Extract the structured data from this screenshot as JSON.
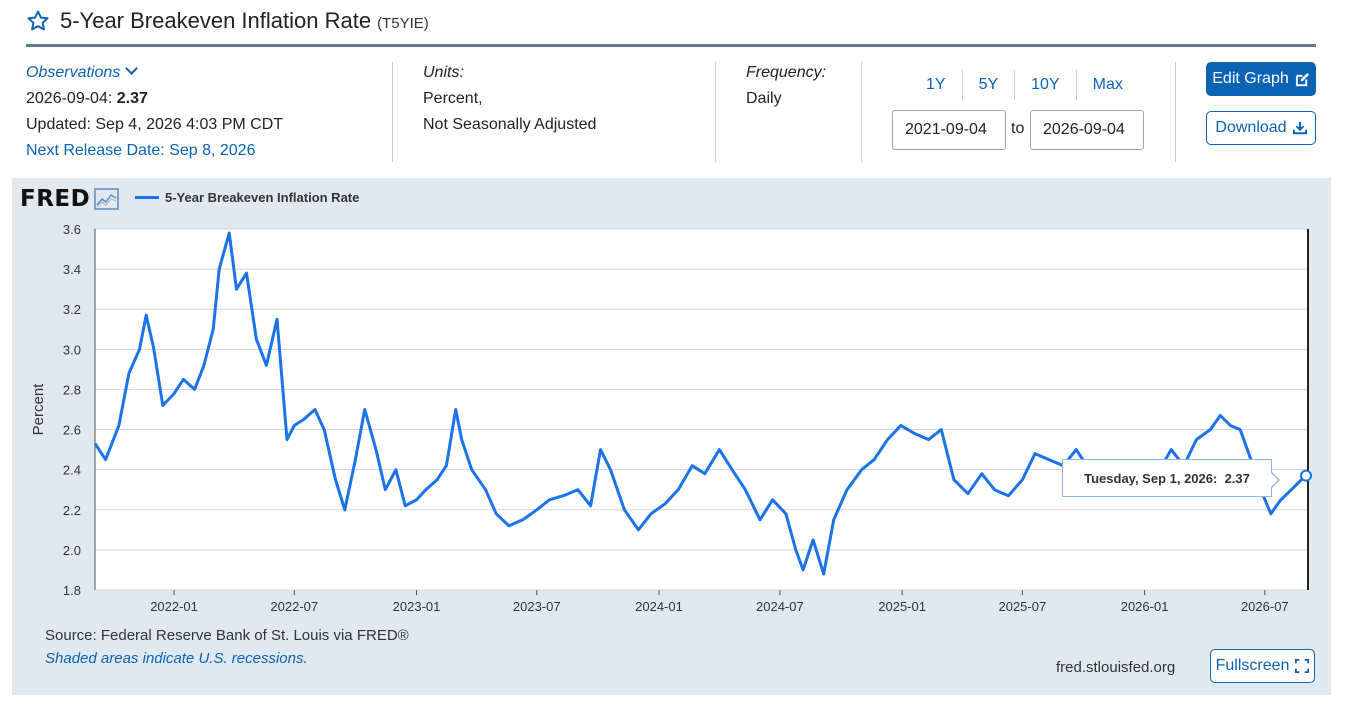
{
  "header": {
    "title": "5-Year Breakeven Inflation Rate",
    "series_code": "(T5YIE)"
  },
  "observations": {
    "label": "Observations",
    "date": "2026-09-04:",
    "value": "2.37",
    "updated": "Updated: Sep 4, 2026 4:03 PM CDT",
    "next_release": "Next Release Date: Sep 8, 2026"
  },
  "units": {
    "label": "Units:",
    "line1": "Percent,",
    "line2": "Not Seasonally Adjusted"
  },
  "frequency": {
    "label": "Frequency:",
    "value": "Daily"
  },
  "range_buttons": [
    "1Y",
    "5Y",
    "10Y",
    "Max"
  ],
  "date_range": {
    "start": "2021-09-04",
    "to": "to",
    "end": "2026-09-04"
  },
  "buttons": {
    "edit_graph": "Edit Graph",
    "download": "Download",
    "fullscreen": "Fullscreen"
  },
  "graph": {
    "logo": "FRED",
    "legend": "5-Year Breakeven Inflation Rate",
    "source": "Source: Federal Reserve Bank of St. Louis via FRED®",
    "recessions": "Shaded areas indicate U.S. recessions.",
    "site": "fred.stlouisfed.org",
    "tooltip_date": "Tuesday, Sep 1, 2026:",
    "tooltip_value": "2.37"
  },
  "colors": {
    "accent": "#0b63b6",
    "series": "#1a73e8",
    "panel": "#e1e9f0"
  },
  "chart_data": {
    "type": "line",
    "ylabel": "Percent",
    "ylim": [
      1.8,
      3.6
    ],
    "yticks": [
      1.8,
      2.0,
      2.2,
      2.4,
      2.6,
      2.8,
      3.0,
      3.2,
      3.4,
      3.6
    ],
    "xlim": [
      "2021-09-04",
      "2026-09-04"
    ],
    "xticks": [
      "2022-01",
      "2022-07",
      "2023-01",
      "2023-07",
      "2024-01",
      "2024-07",
      "2025-01",
      "2025-07",
      "2026-01",
      "2026-07"
    ],
    "grid": true,
    "series": [
      {
        "name": "5-Year Breakeven Inflation Rate",
        "x": [
          "2021-09-04",
          "2021-09-20",
          "2021-10-10",
          "2021-10-25",
          "2021-11-10",
          "2021-11-20",
          "2021-12-01",
          "2021-12-15",
          "2022-01-01",
          "2022-01-15",
          "2022-02-01",
          "2022-02-15",
          "2022-03-01",
          "2022-03-10",
          "2022-03-25",
          "2022-04-05",
          "2022-04-20",
          "2022-05-05",
          "2022-05-20",
          "2022-06-05",
          "2022-06-20",
          "2022-07-01",
          "2022-07-15",
          "2022-08-01",
          "2022-08-15",
          "2022-09-01",
          "2022-09-15",
          "2022-10-01",
          "2022-10-15",
          "2022-11-01",
          "2022-11-15",
          "2022-12-01",
          "2022-12-15",
          "2023-01-01",
          "2023-01-15",
          "2023-02-01",
          "2023-02-15",
          "2023-03-01",
          "2023-03-10",
          "2023-03-25",
          "2023-04-15",
          "2023-05-01",
          "2023-05-20",
          "2023-06-10",
          "2023-07-01",
          "2023-07-20",
          "2023-08-10",
          "2023-09-01",
          "2023-09-20",
          "2023-10-05",
          "2023-10-20",
          "2023-11-10",
          "2023-12-01",
          "2023-12-20",
          "2024-01-10",
          "2024-01-30",
          "2024-02-20",
          "2024-03-10",
          "2024-04-01",
          "2024-04-20",
          "2024-05-10",
          "2024-06-01",
          "2024-06-20",
          "2024-07-10",
          "2024-07-25",
          "2024-08-05",
          "2024-08-20",
          "2024-09-05",
          "2024-09-20",
          "2024-10-10",
          "2024-11-01",
          "2024-11-20",
          "2024-12-10",
          "2024-12-30",
          "2025-01-20",
          "2025-02-10",
          "2025-03-01",
          "2025-03-20",
          "2025-04-10",
          "2025-05-01",
          "2025-05-20",
          "2025-06-10",
          "2025-07-01",
          "2025-07-20",
          "2025-08-10",
          "2025-09-01",
          "2025-09-20",
          "2025-10-10",
          "2025-11-01",
          "2025-11-20",
          "2025-12-10",
          "2026-01-01",
          "2026-01-20",
          "2026-02-10",
          "2026-03-01",
          "2026-03-20",
          "2026-04-10",
          "2026-04-25",
          "2026-05-10",
          "2026-05-25",
          "2026-06-10",
          "2026-06-25",
          "2026-07-10",
          "2026-07-25",
          "2026-08-10",
          "2026-08-25",
          "2026-09-01"
        ],
        "values": [
          2.53,
          2.45,
          2.62,
          2.88,
          3.0,
          3.17,
          3.01,
          2.72,
          2.78,
          2.85,
          2.8,
          2.92,
          3.1,
          3.4,
          3.58,
          3.3,
          3.38,
          3.05,
          2.92,
          3.15,
          2.55,
          2.62,
          2.65,
          2.7,
          2.6,
          2.35,
          2.2,
          2.45,
          2.7,
          2.5,
          2.3,
          2.4,
          2.22,
          2.25,
          2.3,
          2.35,
          2.42,
          2.7,
          2.55,
          2.4,
          2.3,
          2.18,
          2.12,
          2.15,
          2.2,
          2.25,
          2.27,
          2.3,
          2.22,
          2.5,
          2.4,
          2.2,
          2.1,
          2.18,
          2.23,
          2.3,
          2.42,
          2.38,
          2.5,
          2.4,
          2.3,
          2.15,
          2.25,
          2.18,
          2.0,
          1.9,
          2.05,
          1.88,
          2.15,
          2.3,
          2.4,
          2.45,
          2.55,
          2.62,
          2.58,
          2.55,
          2.6,
          2.35,
          2.28,
          2.38,
          2.3,
          2.27,
          2.35,
          2.48,
          2.45,
          2.42,
          2.5,
          2.4,
          2.38,
          2.32,
          2.28,
          2.3,
          2.38,
          2.5,
          2.42,
          2.55,
          2.6,
          2.67,
          2.62,
          2.6,
          2.45,
          2.3,
          2.18,
          2.25,
          2.3,
          2.35,
          2.37
        ]
      }
    ]
  }
}
